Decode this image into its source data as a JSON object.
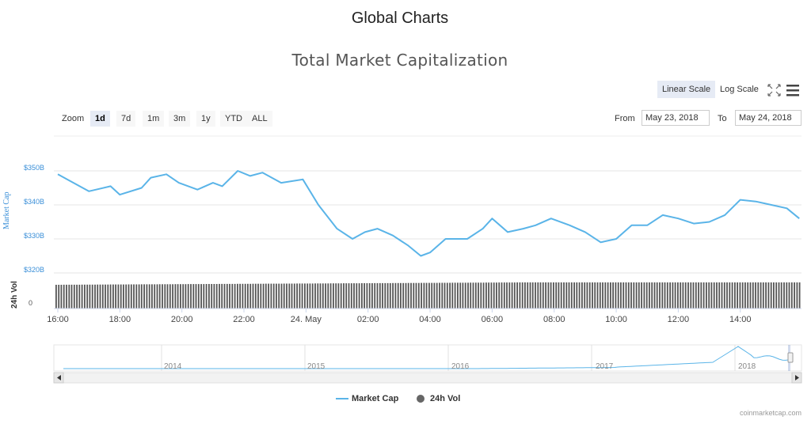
{
  "page_title": "Global Charts",
  "toolbar": {
    "linear_scale": "Linear Scale",
    "log_scale": "Log Scale",
    "zoom_label": "Zoom",
    "zoom_buttons": [
      "1d",
      "7d",
      "1m",
      "3m",
      "1y",
      "YTD",
      "ALL"
    ],
    "zoom_active": "1d",
    "from_label": "From",
    "from_value": "May 23, 2018",
    "to_label": "To",
    "to_value": "May 24, 2018"
  },
  "credits": "coinmarketcap.com",
  "colors": {
    "market_cap": "#5ab4e8",
    "volume": "#555555",
    "axis_text": "#3a8fd8"
  },
  "chart_data": {
    "type": "line",
    "title": "Total Market Capitalization",
    "y_axis": {
      "label": "Market Cap",
      "ticks": [
        "$320B",
        "$330B",
        "$340B",
        "$350B"
      ],
      "range": [
        320,
        350
      ],
      "unit": "billion USD"
    },
    "volume_axis": {
      "label": "24h Vol",
      "ticks": [
        "0"
      ]
    },
    "x_ticks": [
      "16:00",
      "18:00",
      "20:00",
      "22:00",
      "24. May",
      "02:00",
      "04:00",
      "06:00",
      "08:00",
      "10:00",
      "12:00",
      "14:00"
    ],
    "series": [
      {
        "name": "Market Cap",
        "x_hours": [
          0,
          0.3,
          1,
          1.7,
          2,
          2.7,
          3,
          3.5,
          3.9,
          4.5,
          5,
          5.3,
          5.8,
          6.2,
          6.6,
          7.2,
          7.9,
          8.4,
          9,
          9.5,
          9.9,
          10.3,
          10.8,
          11.3,
          11.7,
          12,
          12.5,
          13.2,
          13.7,
          14,
          14.5,
          15,
          15.4,
          15.9,
          16.5,
          17,
          17.5,
          18,
          18.5,
          19,
          19.5,
          20,
          20.5,
          21,
          21.5,
          22,
          22.5,
          23,
          23.5,
          23.9
        ],
        "values": [
          349,
          347.5,
          344,
          345.5,
          343,
          345,
          348,
          349,
          346.5,
          344.5,
          346.5,
          345.5,
          350,
          348.5,
          349.5,
          346.5,
          347.5,
          340,
          333,
          330,
          332,
          333,
          331,
          328,
          325,
          326,
          330,
          330,
          333,
          336,
          332,
          333,
          334,
          336,
          334,
          332,
          329,
          330,
          334,
          334,
          337,
          336,
          334.5,
          335,
          337,
          341.5,
          341,
          340,
          339,
          336
        ]
      },
      {
        "name": "24h Vol",
        "note": "roughly constant volume"
      }
    ],
    "navigator": {
      "x_ticks": [
        "2014",
        "2015",
        "2016",
        "2017",
        "2018"
      ]
    },
    "legend": [
      "Market Cap",
      "24h Vol"
    ]
  }
}
